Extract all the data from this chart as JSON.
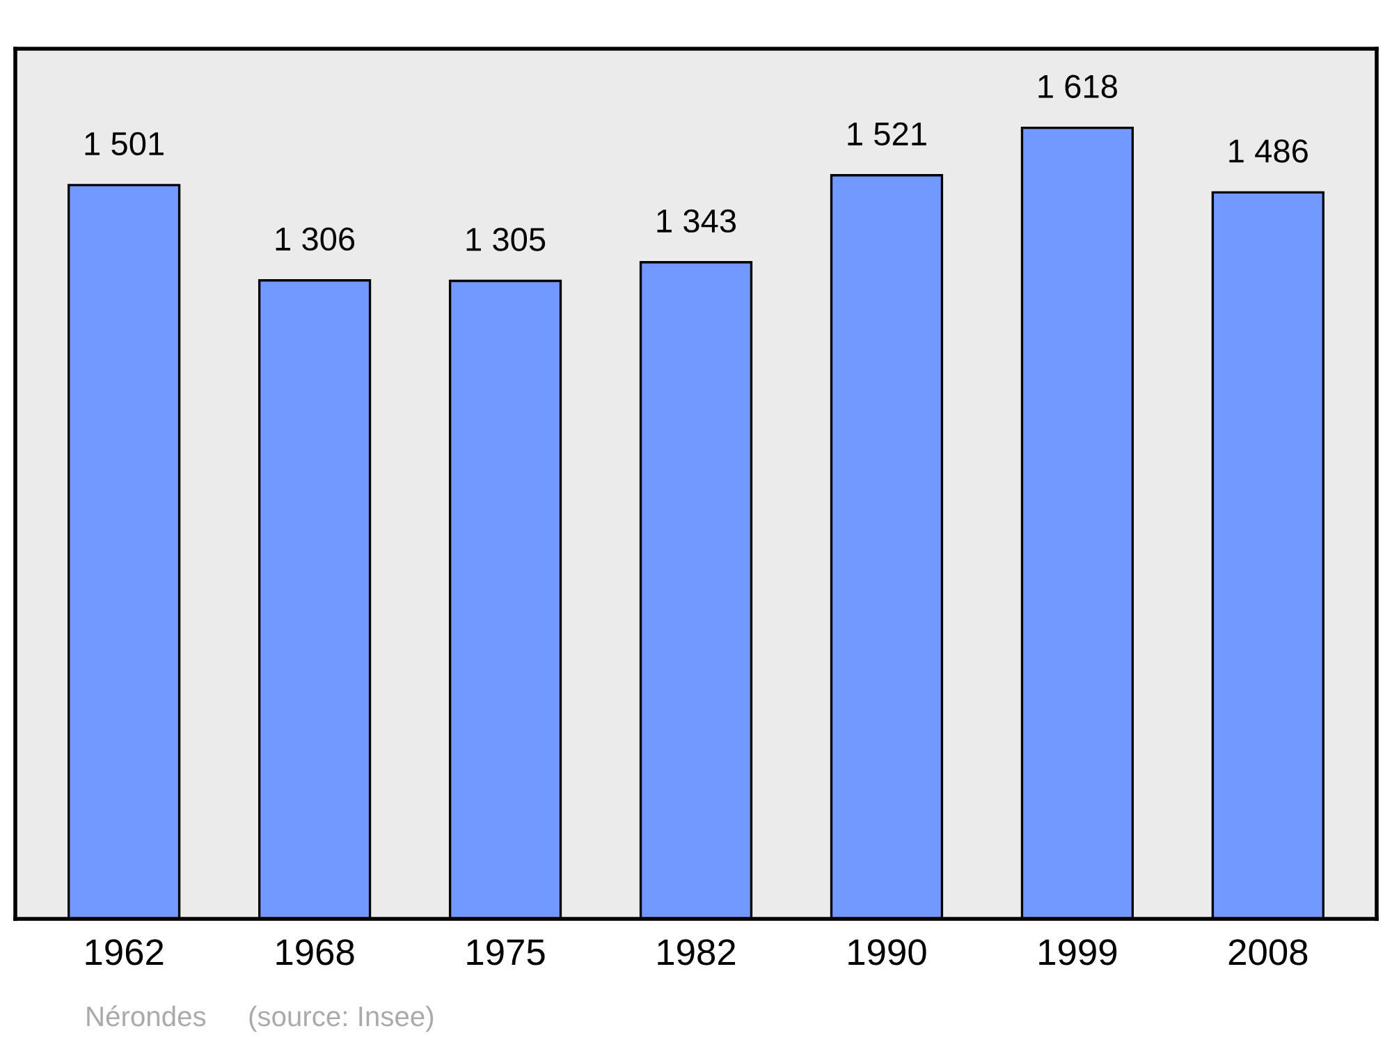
{
  "chart_data": {
    "type": "bar",
    "categories": [
      "1962",
      "1968",
      "1975",
      "1982",
      "1990",
      "1999",
      "2008"
    ],
    "values": [
      1501,
      1306,
      1305,
      1343,
      1521,
      1618,
      1486
    ],
    "color": "#7299ff",
    "data_labels": true,
    "value_labels": [
      "1 501",
      "1 306",
      "1 305",
      "1 343",
      "1 521",
      "1 618",
      "1 486"
    ],
    "tick_labels": "x",
    "grid": false,
    "legend": false,
    "annotations": [
      "Nérondes",
      "(source: Insee)"
    ]
  }
}
